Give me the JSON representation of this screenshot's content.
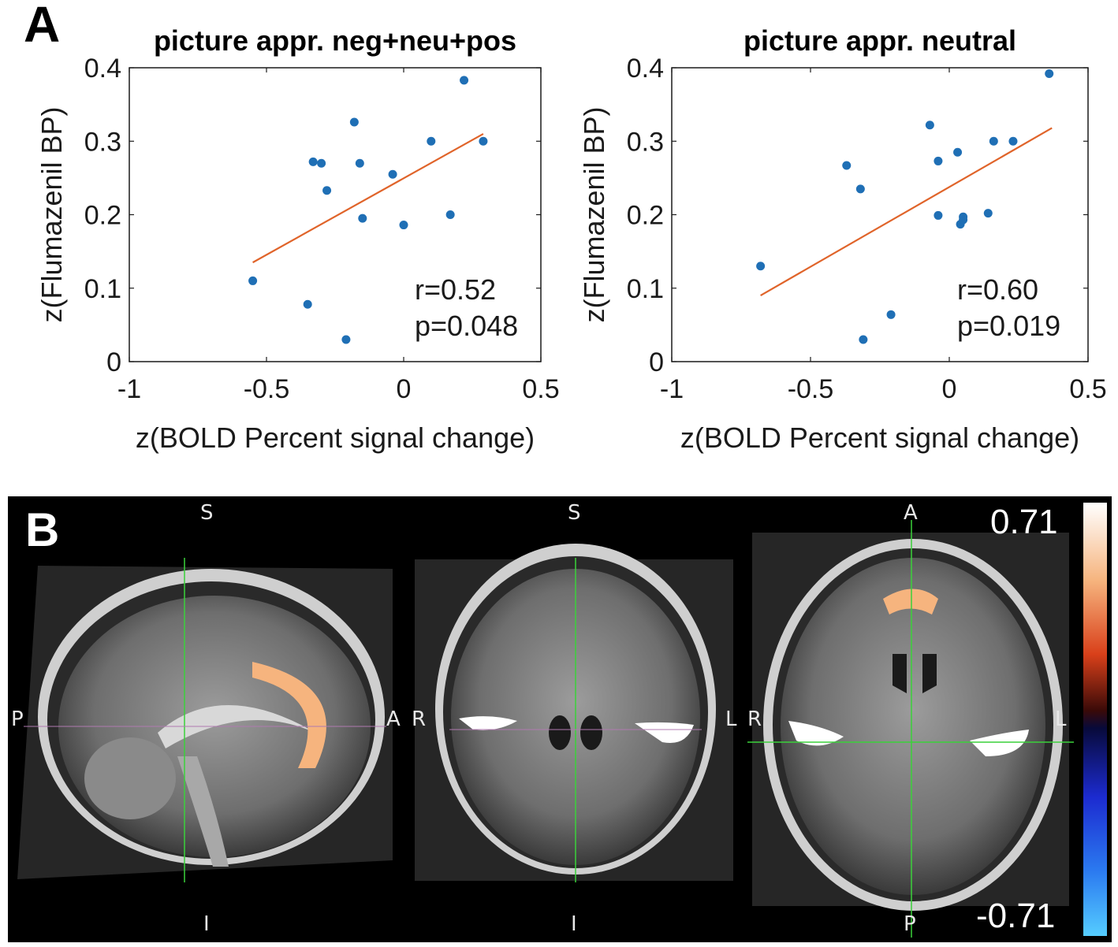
{
  "panel_a_label": "A",
  "panel_b_label": "B",
  "chart_data": [
    {
      "type": "scatter",
      "title": "picture appr. neg+neu+pos",
      "xlabel": "z(BOLD Percent signal change)",
      "ylabel": "z(Flumazenil BP)",
      "xlim": [
        -1,
        0.5
      ],
      "ylim": [
        0,
        0.4
      ],
      "xticks": [
        "-1",
        "-0.5",
        "0",
        "0.5"
      ],
      "yticks": [
        "0",
        "0.1",
        "0.2",
        "0.3",
        "0.4"
      ],
      "x": [
        -0.55,
        -0.35,
        -0.33,
        -0.3,
        -0.28,
        -0.21,
        -0.18,
        -0.16,
        -0.15,
        -0.04,
        0.0,
        0.1,
        0.17,
        0.22,
        0.29
      ],
      "y": [
        0.11,
        0.078,
        0.272,
        0.27,
        0.233,
        0.03,
        0.326,
        0.27,
        0.195,
        0.255,
        0.186,
        0.3,
        0.2,
        0.383,
        0.3
      ],
      "fit_line": {
        "x": [
          -0.55,
          0.29
        ],
        "y": [
          0.135,
          0.31
        ]
      },
      "annotation": [
        "r=0.52",
        "p=0.048"
      ],
      "marker_color": "#1f6fb5",
      "line_color": "#e0642a",
      "grid": false
    },
    {
      "type": "scatter",
      "title": "picture appr. neutral",
      "xlabel": "z(BOLD Percent signal change)",
      "ylabel": "z(Flumazenil BP)",
      "xlim": [
        -1,
        0.5
      ],
      "ylim": [
        0,
        0.4
      ],
      "xticks": [
        "-1",
        "-0.5",
        "0",
        "0.5"
      ],
      "yticks": [
        "0",
        "0.1",
        "0.2",
        "0.3",
        "0.4"
      ],
      "x": [
        -0.68,
        -0.37,
        -0.32,
        -0.31,
        -0.21,
        -0.07,
        -0.04,
        -0.04,
        0.03,
        0.04,
        0.05,
        0.05,
        0.14,
        0.16,
        0.23,
        0.36
      ],
      "y": [
        0.13,
        0.267,
        0.235,
        0.03,
        0.064,
        0.322,
        0.273,
        0.199,
        0.285,
        0.187,
        0.193,
        0.197,
        0.202,
        0.3,
        0.3,
        0.392
      ],
      "fit_line": {
        "x": [
          -0.68,
          0.37
        ],
        "y": [
          0.09,
          0.318
        ]
      },
      "annotation": [
        "r=0.60",
        "p=0.019"
      ],
      "marker_color": "#1f6fb5",
      "line_color": "#e0642a",
      "grid": false
    }
  ],
  "brain": {
    "sagittal": {
      "top": "S",
      "bottom": "I",
      "left": "P",
      "right": "A"
    },
    "coronal": {
      "top": "S",
      "bottom": "I",
      "left": "R",
      "right": "L"
    },
    "axial": {
      "top": "A",
      "bottom": "P",
      "left": "R",
      "right": "L"
    },
    "colorbar_max": "0.71",
    "colorbar_min": "-0.71",
    "roi_color": "#f6b47e",
    "mask_color": "#ffffff",
    "crosshair_color": "#3ad13a"
  }
}
